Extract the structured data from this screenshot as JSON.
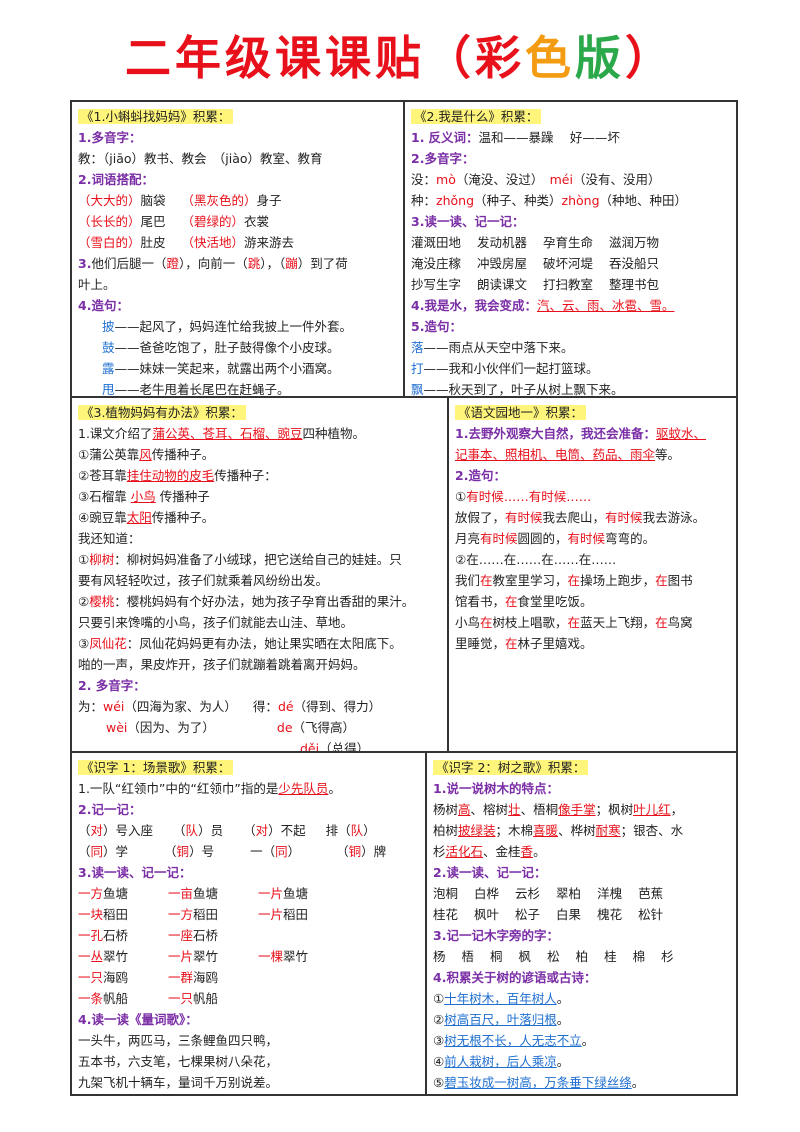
{
  "title": {
    "main": "二年级课课贴",
    "paren_open": "（",
    "c1": "彩",
    "c2": "色",
    "c3": "版",
    "paren_close": "）"
  },
  "c1": {
    "header": "《1.小蝌蚪找妈妈》积累：",
    "s1": "1.多音字：",
    "l1": "教：（jiāo）教书、教会　（jiào）教室、教育",
    "s2": "2.词语搭配：",
    "r1a": "（大大的）",
    "r1b": "脑袋",
    "r1c": "（黑灰色的）",
    "r1d": "身子",
    "r2a": "（长长的）",
    "r2b": "尾巴",
    "r2c": "（碧绿的）",
    "r2d": "衣裳",
    "r3a": "（雪白的）",
    "r3b": "肚皮",
    "r3c": "（快活地）",
    "r3d": "游来游去",
    "s3a": "3.",
    "s3b": "他们后腿一（",
    "s3c": "蹬",
    "s3d": "），向前一（",
    "s3e": "跳",
    "s3f": "），（",
    "s3g": "蹦",
    "s3h": "）到了荷",
    "s3i": "叶上。",
    "s4": "4.造句：",
    "z1a": "披",
    "z1b": "——起风了，妈妈连忙给我披上一件外套。",
    "z2a": "鼓",
    "z2b": "——爸爸吃饱了，肚子鼓得像个小皮球。",
    "z3a": "露",
    "z3b": "——妹妹一笑起来，就露出两个小酒窝。",
    "z4a": "甩",
    "z4b": "——老牛甩着长尾巴在赶蝇子。"
  },
  "c2": {
    "header": "《2.我是什么》积累：",
    "s1a": "1.",
    "s1b": "反义词：",
    "s1c": "温和——暴躁　 好——坏",
    "s2": "2.多音字：",
    "l2a": "没：",
    "l2b": "mò",
    "l2c": "（淹没、没过）　",
    "l2d": "méi",
    "l2e": "（没有、没用）",
    "l3a": "种：",
    "l3b": "zhǒng",
    "l3c": "（种子、种类）",
    "l3d": "zhòng",
    "l3e": "（种地、种田）",
    "s3": "3.读一读、记一记：",
    "r1": [
      "灌溉田地",
      "发动机器",
      "孕育生命",
      "滋润万物"
    ],
    "r2": [
      "淹没庄稼",
      "冲毁房屋",
      "破坏河堤",
      "吞没船只"
    ],
    "r3": [
      "抄写生字",
      "朗读课文",
      "打扫教室",
      "整理书包"
    ],
    "s4a": "4.我是水，我会变成：",
    "s4b": "汽、云、雨、冰雹、雪。",
    "s5": "5.造句：",
    "z1a": "落",
    "z1b": "——雨点从天空中落下来。",
    "z2a": "打",
    "z2b": "——我和小伙伴们一起打篮球。",
    "z3a": "飘",
    "z3b": "——秋天到了，叶子从树上飘下来。"
  },
  "c3": {
    "header": "《3.植物妈妈有办法》积累：",
    "l1a": "1.课文介绍了",
    "l1b": "蒲公英、苍耳、石榴、豌豆",
    "l1c": "四种植物。",
    "l2a": "①蒲公英靠",
    "l2b": "风",
    "l2c": "传播种子。",
    "l3a": "②苍耳靠",
    "l3b": "挂住动物的皮毛",
    "l3c": "传播种子：",
    "l4a": "③石榴靠",
    "l4b": "小鸟",
    "l4c": "传播种子",
    "l5a": "④豌豆靠",
    "l5b": "太阳",
    "l5c": "传播种子。",
    "l6": "我还知道：",
    "l7a": "①",
    "l7b": "柳树",
    "l7c": "：柳树妈妈准备了小绒球，把它送给自己的娃娃。只",
    "l8": "要有风轻轻吹过，孩子们就乘着风纷纷出发。",
    "l9a": "②",
    "l9b": "樱桃",
    "l9c": "：樱桃妈妈有个好办法，她为孩子孕育出香甜的果汁。",
    "l10": "只要引来馋嘴的小鸟，孩子们就能去山洼、草地。",
    "l11a": "③",
    "l11b": "凤仙花",
    "l11c": "：凤仙花妈妈更有办法，她让果实晒在太阳底下。",
    "l12": "啪的一声，果皮炸开，孩子们就蹦着跳着离开妈妈。",
    "s2": "2. 多音字：",
    "p1a": "为：",
    "p1b": "wéi",
    "p1c": "（四海为家、为人）",
    "p1d": "得：",
    "p1e": "dé",
    "p1f": "（得到、得力）",
    "p2a": "wèi",
    "p2b": "（因为、为了）",
    "p2c": "de",
    "p2d": "（飞得高）",
    "p3a": "děi",
    "p3b": "（总得）"
  },
  "c4": {
    "header": "《语文园地一》积累：",
    "l1a": "1.去野外观察大自然，我还会准备：",
    "l1b": "驱蚊水、",
    "l2a": "记事本、照相机、电筒、药品、雨伞",
    "l2b": "等。",
    "s2": "2.造句：",
    "l3a": "①",
    "l3b": "有时候……有时候……",
    "l4a": "放假了，",
    "l4b": "有时候",
    "l4c": "我去爬山，",
    "l4d": "有时候",
    "l4e": "我去游泳。",
    "l5a": "月亮",
    "l5b": "有时候",
    "l5c": "圆圆的，",
    "l5d": "有时候",
    "l5e": "弯弯的。",
    "l6": "②在……在……在……在……",
    "l7a": "我们",
    "l7b": "在",
    "l7c": "教室里学习，",
    "l7d": "在",
    "l7e": "操场上跑步，",
    "l7f": "在",
    "l7g": "图书",
    "l8a": "馆看书，",
    "l8b": "在",
    "l8c": "食堂里吃饭。",
    "l9a": "小鸟",
    "l9b": "在",
    "l9c": "树枝上唱歌，",
    "l9d": "在",
    "l9e": "蓝天上飞翔，",
    "l9f": "在",
    "l9g": "鸟窝",
    "l10a": "里睡觉，",
    "l10b": "在",
    "l10c": "林子里嬉戏。"
  },
  "c5": {
    "header": "《识字 1：场景歌》积累：",
    "l1a": "1.一队“红领巾”中的“红领巾”指的是",
    "l1b": "少先队员",
    "l1c": "。",
    "s2": "2.记一记：",
    "j1": [
      [
        "（",
        "对",
        "）号入座"
      ],
      [
        "（",
        "队",
        "）员"
      ],
      [
        "（",
        "对",
        "）不起"
      ],
      [
        "排（",
        "队",
        "）"
      ]
    ],
    "j2": [
      [
        "（",
        "同",
        "）学"
      ],
      [
        "（",
        "铜",
        "）号"
      ],
      [
        "一（",
        "同",
        "）"
      ],
      [
        "（",
        "铜",
        "）牌"
      ]
    ],
    "s3": "3.读一读、记一记：",
    "g1": [
      [
        "一方",
        "鱼塘"
      ],
      [
        "一亩",
        "鱼塘"
      ],
      [
        "一片",
        "鱼塘"
      ]
    ],
    "g2": [
      [
        "一块",
        "稻田"
      ],
      [
        "一方",
        "稻田"
      ],
      [
        "一片",
        "稻田"
      ]
    ],
    "g3": [
      [
        "一孔",
        "石桥"
      ],
      [
        "一座",
        "石桥"
      ]
    ],
    "g4": [
      [
        "一丛",
        "翠竹"
      ],
      [
        "一片",
        "翠竹"
      ],
      [
        "一棵",
        "翠竹"
      ]
    ],
    "g5": [
      [
        "一只",
        "海鸥"
      ],
      [
        "一群",
        "海鸥"
      ]
    ],
    "g6": [
      [
        "一条",
        "帆船"
      ],
      [
        "一只",
        "帆船"
      ]
    ],
    "s4": "4.读一读《量词歌》：",
    "p1": "一头牛，两匹马，三条鲤鱼四只鸭，",
    "p2": "五本书，六支笔，七棵果树八朵花，",
    "p3": "九架飞机十辆车，量词千万别说差。"
  },
  "c6": {
    "header": "《识字 2：树之歌》积累：",
    "s1": "1.说一说树木的特点：",
    "l1a": "杨树",
    "l1b": "高",
    "l1c": "、榕树",
    "l1d": "壮",
    "l1e": "、梧桐",
    "l1f": "像手掌",
    "l1g": "；枫树",
    "l1h": "叶儿红",
    "l1i": "，",
    "l2a": "柏树",
    "l2b": "披绿装",
    "l2c": "；木棉",
    "l2d": "喜暖",
    "l2e": "、桦树",
    "l2f": "耐寒",
    "l2g": "；银杏、水",
    "l3a": "杉",
    "l3b": "活化石",
    "l3c": "、金桂",
    "l3d": "香",
    "l3e": "。",
    "s2": "2.读一读、记一记：",
    "r1": [
      "泡桐",
      "白桦",
      "云杉",
      "翠柏",
      "洋槐",
      "芭蕉"
    ],
    "r2": [
      "桂花",
      "枫叶",
      "松子",
      "白果",
      "槐花",
      "松针"
    ],
    "s3": "3.记一记木字旁的字：",
    "r3": [
      "杨",
      "梧",
      "桐",
      "枫",
      "松",
      "柏",
      "桂",
      "棉",
      "杉"
    ],
    "s4": "4.积累关于树的谚语或古诗：",
    "q1a": "①",
    "q1b": "十年树木，百年树人",
    "q1c": "。",
    "q2a": "②",
    "q2b": "树高百尺，叶落归根",
    "q2c": "。",
    "q3a": "③",
    "q3b": "树无根不长，人无志不立",
    "q3c": "。",
    "q4a": "④",
    "q4b": "前人栽树，后人乘凉",
    "q4c": "。",
    "q5a": "⑤",
    "q5b": "碧玉妆成一树高，万条垂下绿丝绦",
    "q5c": "。"
  }
}
